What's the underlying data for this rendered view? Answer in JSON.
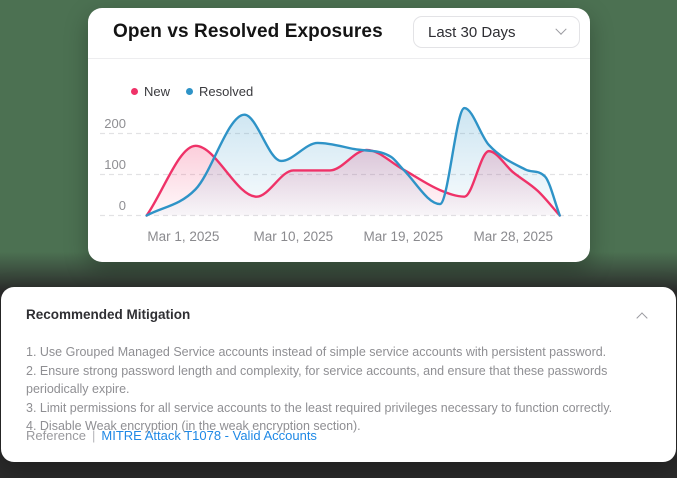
{
  "page": {
    "colors": {
      "background_top": "#4c7152",
      "background_bottom": "#2b2b2b",
      "card": "#ffffff",
      "accent_new": "#ef3268",
      "accent_resolved": "#2e93c7",
      "link": "#1e88e5"
    }
  },
  "exposures_card": {
    "title": "Open vs Resolved Exposures",
    "range_select": {
      "value": "Last 30 Days"
    },
    "legend": [
      {
        "label": "New",
        "color": "#ef3268"
      },
      {
        "label": "Resolved",
        "color": "#2e93c7"
      }
    ]
  },
  "chart_data": {
    "type": "line",
    "title": "Open vs Resolved Exposures",
    "smoothing": "monotone",
    "grid": "horizontal dashed",
    "legend_position": "top-left",
    "x_axis": {
      "unit": "date",
      "start_date": "Feb 26, 2025",
      "end_date": "Mar 31, 2025",
      "tick_labels": [
        "Mar 1, 2025",
        "Mar 10, 2025",
        "Mar 19, 2025",
        "Mar 28, 2025"
      ],
      "tick_days": [
        3,
        12,
        21,
        30
      ]
    },
    "y_axis": {
      "ticks": [
        0,
        100,
        200
      ],
      "range": [
        0,
        270
      ]
    },
    "series": [
      {
        "name": "New",
        "color": "#ef3268",
        "points": [
          {
            "date": "Feb 26",
            "day": 0,
            "value": 0
          },
          {
            "date": "Mar 2",
            "day": 4,
            "value": 170
          },
          {
            "date": "Mar 7",
            "day": 9,
            "value": 46
          },
          {
            "date": "Mar 10",
            "day": 12,
            "value": 110
          },
          {
            "date": "Mar 13",
            "day": 15,
            "value": 110
          },
          {
            "date": "Mar 16",
            "day": 18,
            "value": 160
          },
          {
            "date": "Mar 19",
            "day": 21,
            "value": 112
          },
          {
            "date": "Mar 22",
            "day": 24,
            "value": 62
          },
          {
            "date": "Mar 24",
            "day": 26,
            "value": 46
          },
          {
            "date": "Mar 26",
            "day": 28,
            "value": 157
          },
          {
            "date": "Mar 28",
            "day": 30,
            "value": 105
          },
          {
            "date": "Mar 30",
            "day": 32,
            "value": 60
          },
          {
            "date": "Mar 31",
            "day": 33.8,
            "value": 0
          }
        ]
      },
      {
        "name": "Resolved",
        "color": "#2e93c7",
        "points": [
          {
            "date": "Feb 26",
            "day": 0,
            "value": 0
          },
          {
            "date": "Mar 2",
            "day": 4,
            "value": 64
          },
          {
            "date": "Mar 6",
            "day": 8,
            "value": 246
          },
          {
            "date": "Mar 9",
            "day": 11,
            "value": 133
          },
          {
            "date": "Mar 12",
            "day": 14,
            "value": 177
          },
          {
            "date": "Mar 15",
            "day": 17,
            "value": 162
          },
          {
            "date": "Mar 18",
            "day": 20,
            "value": 143
          },
          {
            "date": "Mar 19",
            "day": 21,
            "value": 112
          },
          {
            "date": "Mar 22",
            "day": 24,
            "value": 28
          },
          {
            "date": "Mar 24",
            "day": 26,
            "value": 262
          },
          {
            "date": "Mar 26",
            "day": 28,
            "value": 172
          },
          {
            "date": "Mar 29",
            "day": 31,
            "value": 112
          },
          {
            "date": "Mar 30",
            "day": 32.6,
            "value": 95
          },
          {
            "date": "Mar 31",
            "day": 33.8,
            "value": 0
          }
        ]
      }
    ]
  },
  "mitigation_card": {
    "title": "Recommended Mitigation",
    "items": [
      "1. Use Grouped Managed Service accounts instead of simple service accounts with persistent password.",
      "2. Ensure strong password length and complexity, for service accounts, and ensure that these passwords periodically expire.",
      "3. Limit permissions for all service accounts to the least required privileges necessary to function correctly.",
      "4. Disable Weak encryption (in the weak encryption section)."
    ],
    "reference_label": "Reference",
    "reference_separator": "|",
    "reference_link": "MITRE Attack T1078 - Valid Accounts"
  }
}
